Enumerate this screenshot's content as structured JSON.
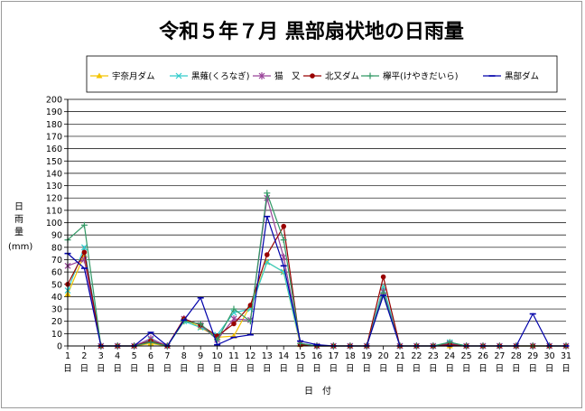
{
  "chart_data": {
    "type": "line",
    "title": "令和５年７月 黒部扇状地の日雨量",
    "ylabel": [
      "日",
      "雨",
      "量"
    ],
    "yunit": "(mm)",
    "xlabel": "日　付",
    "ylim": [
      0,
      200
    ],
    "ytick_step": 10,
    "grid": true,
    "legend_position": "top",
    "categories": [
      "1",
      "2",
      "3",
      "4",
      "5",
      "6",
      "7",
      "8",
      "9",
      "10",
      "11",
      "12",
      "13",
      "14",
      "15",
      "16",
      "17",
      "18",
      "19",
      "20",
      "21",
      "22",
      "23",
      "24",
      "25",
      "26",
      "27",
      "28",
      "29",
      "30",
      "31"
    ],
    "category_suffix": "日",
    "series": [
      {
        "name": "宇奈月ダム",
        "color": "#f4c400",
        "marker": "triangle",
        "values": [
          42,
          74,
          0,
          0,
          0,
          2,
          0,
          22,
          15,
          7,
          8,
          33,
          68,
          60,
          1,
          0,
          0,
          0,
          0,
          47,
          0,
          0,
          0,
          0,
          0,
          0,
          0,
          0,
          0,
          0,
          0
        ]
      },
      {
        "name": "黒薙(くろなぎ)",
        "color": "#33cccc",
        "marker": "x",
        "values": [
          45,
          80,
          0,
          0,
          0,
          5,
          0,
          20,
          15,
          9,
          27,
          30,
          68,
          60,
          2,
          0,
          0,
          0,
          0,
          48,
          0,
          0,
          0,
          3,
          0,
          0,
          0,
          0,
          0,
          0,
          0
        ]
      },
      {
        "name": "猫　又",
        "color": "#994499",
        "marker": "star",
        "values": [
          65,
          70,
          0,
          0,
          0,
          6,
          0,
          22,
          17,
          5,
          22,
          21,
          120,
          72,
          2,
          0,
          0,
          0,
          0,
          44,
          0,
          0,
          0,
          2,
          0,
          0,
          0,
          0,
          0,
          0,
          0
        ]
      },
      {
        "name": "北又ダム",
        "color": "#990000",
        "marker": "circle",
        "values": [
          50,
          76,
          0,
          0,
          0,
          4,
          0,
          22,
          17,
          8,
          18,
          33,
          74,
          97,
          1,
          0,
          0,
          0,
          0,
          56,
          0,
          0,
          0,
          1,
          0,
          0,
          0,
          0,
          0,
          0,
          0
        ]
      },
      {
        "name": "欅平(けやきだいら)",
        "color": "#339966",
        "marker": "plus",
        "values": [
          86,
          98,
          0,
          0,
          0,
          3,
          0,
          20,
          18,
          5,
          30,
          20,
          124,
          86,
          2,
          0,
          0,
          0,
          0,
          43,
          0,
          0,
          0,
          3,
          0,
          0,
          0,
          0,
          0,
          0,
          0
        ]
      },
      {
        "name": "黒部ダム",
        "color": "#0000aa",
        "marker": "dash",
        "values": [
          75,
          63,
          0,
          0,
          0,
          11,
          0,
          21,
          39,
          1,
          7,
          9,
          105,
          65,
          4,
          1,
          0,
          0,
          0,
          41,
          0,
          0,
          0,
          0,
          0,
          0,
          0,
          0,
          26,
          0,
          0
        ]
      }
    ]
  }
}
